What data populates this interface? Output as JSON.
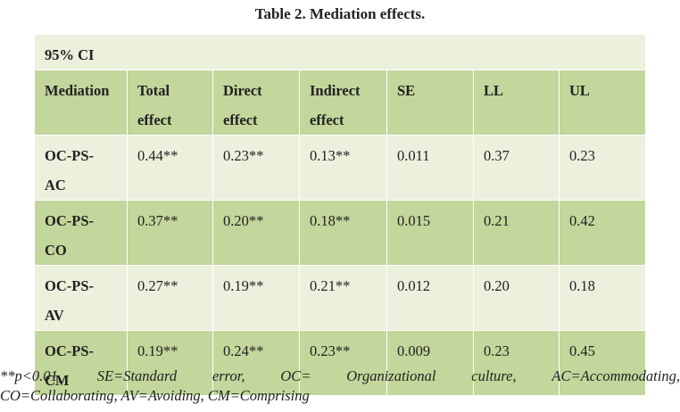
{
  "caption": "Table 2. Mediation effects.",
  "ci_label": "95% CI",
  "headers": [
    [
      "Mediation",
      ""
    ],
    [
      "Total",
      "effect"
    ],
    [
      "Direct",
      "effect"
    ],
    [
      "Indirect",
      "effect"
    ],
    [
      "SE",
      ""
    ],
    [
      "LL",
      ""
    ],
    [
      "UL",
      ""
    ]
  ],
  "rows": [
    {
      "label": [
        "OC-PS-",
        "AC"
      ],
      "values": [
        "0.44**",
        "0.23**",
        "0.13**",
        "0.011",
        "0.37",
        "0.23"
      ]
    },
    {
      "label": [
        "OC-PS-",
        "CO"
      ],
      "values": [
        "0.37**",
        "0.20**",
        "0.18**",
        "0.015",
        "0.21",
        "0.42"
      ]
    },
    {
      "label": [
        "OC-PS-",
        "AV"
      ],
      "values": [
        "0.27**",
        "0.19**",
        "0.21**",
        "0.012",
        "0.20",
        "0.18"
      ]
    },
    {
      "label": [
        "OC-PS-",
        "CM"
      ],
      "values": [
        "0.19**",
        "0.24**",
        "0.23**",
        "0.009",
        "0.23",
        "0.45"
      ]
    }
  ],
  "note": {
    "line1_parts": [
      "**p<0.01,",
      "SE=Standard",
      "error,",
      "OC=",
      "Organizational",
      "culture,",
      "AC=Accommodating,"
    ],
    "line2": "CO=Collaborating, AV=Avoiding, CM=Comprising"
  },
  "colors": {
    "light_row": "#ebf1dd",
    "dark_row": "#c3d69b",
    "cell_border": "#ffffff"
  }
}
